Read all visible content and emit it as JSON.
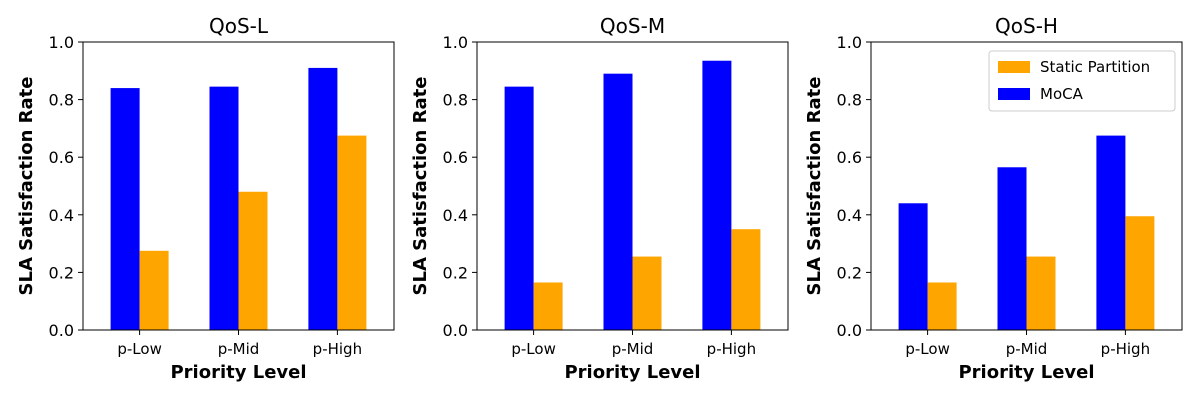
{
  "colors": {
    "moca": "#0000ff",
    "static": "#ffa500"
  },
  "legend": {
    "static_label": "Static Partition",
    "moca_label": "MoCA",
    "placement": "top-right (third panel)"
  },
  "chart_data": [
    {
      "type": "bar",
      "title": "QoS-L",
      "xlabel": "Priority Level",
      "ylabel": "SLA Satisfaction Rate",
      "ylim": [
        0,
        1.0
      ],
      "yticks": [
        "0.0",
        "0.2",
        "0.4",
        "0.6",
        "0.8",
        "1.0"
      ],
      "categories": [
        "p-Low",
        "p-Mid",
        "p-High"
      ],
      "series": [
        {
          "name": "MoCA",
          "values": [
            0.84,
            0.845,
            0.91
          ]
        },
        {
          "name": "Static Partition",
          "values": [
            0.275,
            0.48,
            0.675
          ]
        }
      ],
      "grid": false
    },
    {
      "type": "bar",
      "title": "QoS-M",
      "xlabel": "Priority Level",
      "ylabel": "SLA Satisfaction Rate",
      "ylim": [
        0,
        1.0
      ],
      "yticks": [
        "0.0",
        "0.2",
        "0.4",
        "0.6",
        "0.8",
        "1.0"
      ],
      "categories": [
        "p-Low",
        "p-Mid",
        "p-High"
      ],
      "series": [
        {
          "name": "MoCA",
          "values": [
            0.845,
            0.89,
            0.935
          ]
        },
        {
          "name": "Static Partition",
          "values": [
            0.165,
            0.255,
            0.35
          ]
        }
      ],
      "grid": false
    },
    {
      "type": "bar",
      "title": "QoS-H",
      "xlabel": "Priority Level",
      "ylabel": "SLA Satisfaction Rate",
      "ylim": [
        0,
        1.0
      ],
      "yticks": [
        "0.0",
        "0.2",
        "0.4",
        "0.6",
        "0.8",
        "1.0"
      ],
      "categories": [
        "p-Low",
        "p-Mid",
        "p-High"
      ],
      "series": [
        {
          "name": "MoCA",
          "values": [
            0.44,
            0.565,
            0.675
          ]
        },
        {
          "name": "Static Partition",
          "values": [
            0.165,
            0.255,
            0.395
          ]
        }
      ],
      "grid": false,
      "show_legend": true
    }
  ]
}
